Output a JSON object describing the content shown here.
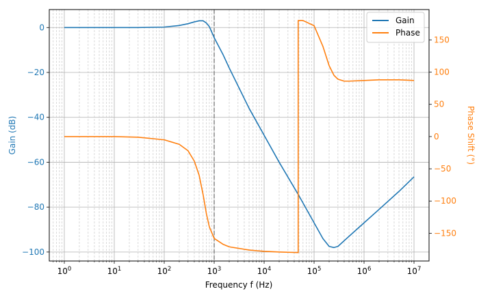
{
  "chart_data": {
    "type": "line",
    "xlabel": "Frequency f (Hz)",
    "ylabel_left": "Gain (dB)",
    "ylabel_right": "Phase Shift (°)",
    "x_scale": "log",
    "xlim": [
      0.5,
      20000000
    ],
    "ylim_left": [
      -104,
      8
    ],
    "ylim_right": [
      -193,
      197
    ],
    "x_ticks": [
      {
        "value": 1,
        "base": "10",
        "exp": "0"
      },
      {
        "value": 10,
        "base": "10",
        "exp": "1"
      },
      {
        "value": 100,
        "base": "10",
        "exp": "2"
      },
      {
        "value": 1000,
        "base": "10",
        "exp": "3"
      },
      {
        "value": 10000,
        "base": "10",
        "exp": "4"
      },
      {
        "value": 100000,
        "base": "10",
        "exp": "5"
      },
      {
        "value": 1000000,
        "base": "10",
        "exp": "6"
      },
      {
        "value": 10000000,
        "base": "10",
        "exp": "7"
      }
    ],
    "y_ticks_left": [
      {
        "value": 0,
        "label": "0"
      },
      {
        "value": -20,
        "label": "−20"
      },
      {
        "value": -40,
        "label": "−40"
      },
      {
        "value": -60,
        "label": "−60"
      },
      {
        "value": -80,
        "label": "−80"
      },
      {
        "value": -100,
        "label": "−100"
      }
    ],
    "y_ticks_right": [
      {
        "value": 150,
        "label": "150"
      },
      {
        "value": 100,
        "label": "100"
      },
      {
        "value": 50,
        "label": "50"
      },
      {
        "value": 0,
        "label": "0"
      },
      {
        "value": -50,
        "label": "−50"
      },
      {
        "value": -100,
        "label": "−100"
      },
      {
        "value": -150,
        "label": "−150"
      }
    ],
    "vline_x": 1000,
    "legend_position": "top-right",
    "grid": true,
    "colors": {
      "gain": "#1f77b4",
      "phase": "#ff7f0e",
      "vline": "#808080"
    },
    "series": [
      {
        "name": "Gain",
        "axis": "left",
        "x": [
          1,
          10,
          30,
          100,
          200,
          300,
          400,
          500,
          600,
          700,
          800,
          1000,
          1500,
          2000,
          5000,
          10000,
          20000,
          50000,
          100000,
          150000,
          200000,
          250000,
          300000,
          500000,
          1000000,
          2000000,
          5000000,
          10000000
        ],
        "y": [
          0,
          0,
          0,
          0.2,
          0.9,
          1.7,
          2.5,
          3.0,
          3.0,
          2.0,
          0.4,
          -4.5,
          -12,
          -18,
          -36,
          -48,
          -60,
          -75,
          -87,
          -94,
          -97.5,
          -98,
          -97.5,
          -93,
          -87,
          -81,
          -73,
          -66.5
        ]
      },
      {
        "name": "Phase",
        "axis": "right",
        "x": [
          1,
          10,
          30,
          100,
          200,
          300,
          400,
          500,
          600,
          700,
          800,
          1000,
          1500,
          2000,
          5000,
          10000,
          20000,
          48000,
          48001,
          60000,
          100000,
          150000,
          200000,
          250000,
          300000,
          400000,
          500000,
          1000000,
          2000000,
          5000000,
          10000000
        ],
        "y": [
          0,
          0,
          -1,
          -5,
          -12,
          -22,
          -38,
          -60,
          -90,
          -120,
          -140,
          -158,
          -167,
          -171,
          -176,
          -178,
          -179,
          -180,
          180,
          180,
          172,
          140,
          110,
          95,
          89,
          86,
          86,
          87,
          88,
          88,
          87
        ]
      }
    ]
  }
}
